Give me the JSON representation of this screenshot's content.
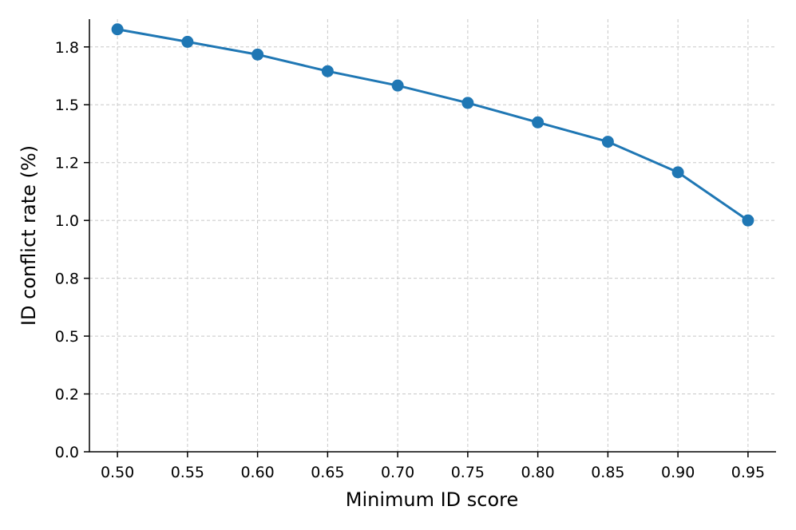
{
  "chart_data": {
    "type": "line",
    "title": "",
    "xlabel": "Minimum ID score",
    "ylabel": "ID conflict rate (%)",
    "x": [
      0.5,
      0.55,
      0.6,
      0.65,
      0.7,
      0.75,
      0.8,
      0.85,
      0.9,
      0.95
    ],
    "xticks": [
      "0.50",
      "0.55",
      "0.60",
      "0.65",
      "0.70",
      "0.75",
      "0.80",
      "0.85",
      "0.90",
      "0.95"
    ],
    "yticks": [
      "0.0",
      "0.2",
      "0.5",
      "0.8",
      "1.0",
      "1.2",
      "1.5",
      "1.8"
    ],
    "ytick_values": [
      0.0,
      0.25,
      0.5,
      0.75,
      1.0,
      1.25,
      1.5,
      1.75
    ],
    "xlim": [
      0.48,
      0.97
    ],
    "ylim": [
      0.0,
      1.87
    ],
    "grid": true,
    "series": [
      {
        "name": "",
        "color": "#1f77b4",
        "marker": "circle",
        "values": [
          1.826,
          1.772,
          1.717,
          1.645,
          1.583,
          1.508,
          1.424,
          1.34,
          1.208,
          1.0
        ]
      }
    ]
  }
}
